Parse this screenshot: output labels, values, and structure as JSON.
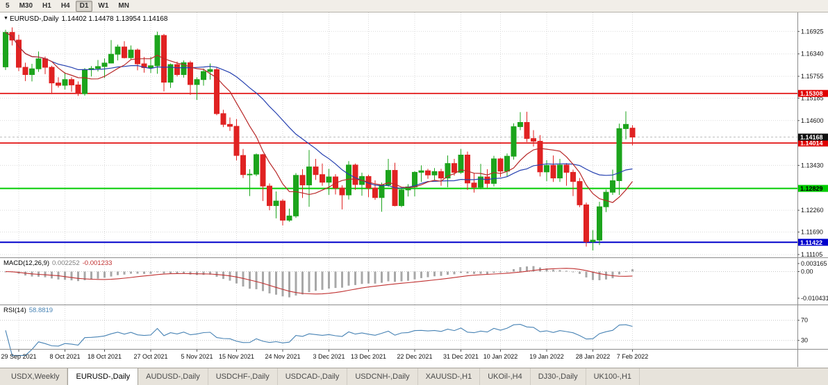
{
  "toolbar": {
    "timeframes": [
      {
        "label": "5",
        "active": false
      },
      {
        "label": "M30",
        "active": false
      },
      {
        "label": "H1",
        "active": false
      },
      {
        "label": "H4",
        "active": false
      },
      {
        "label": "D1",
        "active": true
      },
      {
        "label": "W1",
        "active": false
      },
      {
        "label": "MN",
        "active": false
      }
    ]
  },
  "chart": {
    "symbol_title": "EURUSD-,Daily",
    "ohlc_text": "1.14402 1.14478 1.13954 1.14168"
  },
  "indicators": {
    "macd": {
      "name": "MACD(12,26,9)",
      "value_main": "0.002252",
      "value_signal": "-0.001233"
    },
    "rsi": {
      "name": "RSI(14)",
      "value": "58.8819"
    }
  },
  "tabs": {
    "items": [
      "USDX,Weekly",
      "EURUSD-,Daily",
      "AUDUSD-,Daily",
      "USDCHF-,Daily",
      "USDCAD-,Daily",
      "USDCNH-,Daily",
      "XAUUSD-,H1",
      "UKOil-,H4",
      "DJ30-,Daily",
      "UK100-,H1"
    ],
    "active": "EURUSD-,Daily"
  },
  "chart_data": {
    "type": "candlestick",
    "symbol": "EURUSD-",
    "timeframe": "Daily",
    "title": "EURUSD-,Daily 1.14402 1.14478 1.13954 1.14168",
    "last_candle": {
      "open": 1.14402,
      "high": 1.14478,
      "low": 1.13954,
      "close": 1.14168
    },
    "price_range": [
      1.1103,
      1.1742
    ],
    "price_axis_ticks": [
      1.16925,
      1.1634,
      1.15755,
      1.15185,
      1.146,
      1.1343,
      1.1226,
      1.1169,
      1.11105
    ],
    "current_price": {
      "value": 1.14168,
      "label": "1.14168",
      "color": "#111111"
    },
    "hlines": [
      {
        "name": "resistance-line-upper",
        "price": 1.15308,
        "label": "1.15308",
        "color": "#e00000",
        "text_color": "#ffffff",
        "width": 1.6
      },
      {
        "name": "resistance-line-lower",
        "price": 1.14014,
        "label": "1.14014",
        "color": "#e00000",
        "text_color": "#ffffff",
        "width": 1.6
      },
      {
        "name": "support-line-green",
        "price": 1.12829,
        "label": "1.12829",
        "color": "#00cc00",
        "text_color": "#000000",
        "width": 2
      },
      {
        "name": "support-line-blue",
        "price": 1.11422,
        "label": "1.11422",
        "color": "#0000cc",
        "text_color": "#ffffff",
        "width": 2
      }
    ],
    "moving_averages": [
      {
        "period": 21,
        "color": "#2540b0"
      },
      {
        "period": 8,
        "color": "#b82828"
      }
    ],
    "macd": {
      "params": [
        12,
        26,
        9
      ],
      "ylim": [
        -0.0129,
        0.0053
      ],
      "axis_labels": [
        "0.003165",
        "0.00",
        "-0.010431"
      ]
    },
    "rsi": {
      "period": 14,
      "ylim": [
        13,
        100
      ],
      "levels": [
        70,
        30
      ],
      "last_value": 58.8819
    },
    "date_ticks": [
      [
        2,
        "29 Sep 2021"
      ],
      [
        9,
        "8 Oct 2021"
      ],
      [
        15,
        "18 Oct 2021"
      ],
      [
        22,
        "27 Oct 2021"
      ],
      [
        29,
        "5 Nov 2021"
      ],
      [
        35,
        "15 Nov 2021"
      ],
      [
        42,
        "24 Nov 2021"
      ],
      [
        49,
        "3 Dec 2021"
      ],
      [
        55,
        "13 Dec 2021"
      ],
      [
        62,
        "22 Dec 2021"
      ],
      [
        69,
        "31 Dec 2021"
      ],
      [
        75,
        "10 Jan 2022"
      ],
      [
        82,
        "19 Jan 2022"
      ],
      [
        89,
        "28 Jan 2022"
      ],
      [
        95,
        "7 Feb 2022"
      ]
    ],
    "colors": {
      "bull_candle": "#1ca41c",
      "bear_candle": "#e02222",
      "grid": "#d9d9d9",
      "panel_border": "#8c8c8c",
      "macd_histogram": "#a8a8a8",
      "macd_signal": "#c03030",
      "rsi_line": "#4682b4"
    },
    "candles": [
      [
        "27 Sep 2021",
        1.16,
        1.1697,
        1.1592,
        1.169
      ],
      [
        "28 Sep 2021",
        1.169,
        1.1703,
        1.1656,
        1.167
      ],
      [
        "29 Sep 2021",
        1.167,
        1.1684,
        1.1589,
        1.1599
      ],
      [
        "30 Sep 2021",
        1.1599,
        1.1611,
        1.1563,
        1.158
      ],
      [
        "1 Oct 2021",
        1.158,
        1.1608,
        1.1562,
        1.1595
      ],
      [
        "4 Oct 2021",
        1.1595,
        1.164,
        1.1587,
        1.1621
      ],
      [
        "5 Oct 2021",
        1.1621,
        1.1627,
        1.1581,
        1.1599
      ],
      [
        "6 Oct 2021",
        1.1599,
        1.1603,
        1.1529,
        1.1558
      ],
      [
        "7 Oct 2021",
        1.1558,
        1.1573,
        1.1546,
        1.1552
      ],
      [
        "8 Oct 2021",
        1.1552,
        1.1586,
        1.1541,
        1.1567
      ],
      [
        "11 Oct 2021",
        1.1567,
        1.1573,
        1.1535,
        1.1553
      ],
      [
        "12 Oct 2021",
        1.1553,
        1.1562,
        1.1524,
        1.153
      ],
      [
        "13 Oct 2021",
        1.153,
        1.1597,
        1.1525,
        1.1593
      ],
      [
        "14 Oct 2021",
        1.1593,
        1.1602,
        1.1575,
        1.1596
      ],
      [
        "15 Oct 2021",
        1.1596,
        1.1618,
        1.1588,
        1.1601
      ],
      [
        "18 Oct 2021",
        1.1601,
        1.1622,
        1.1571,
        1.161
      ],
      [
        "19 Oct 2021",
        1.161,
        1.167,
        1.1609,
        1.1633
      ],
      [
        "20 Oct 2021",
        1.1633,
        1.1658,
        1.1617,
        1.1652
      ],
      [
        "21 Oct 2021",
        1.1652,
        1.1667,
        1.1622,
        1.1624
      ],
      [
        "22 Oct 2021",
        1.1624,
        1.1656,
        1.162,
        1.1644
      ],
      [
        "25 Oct 2021",
        1.1644,
        1.1648,
        1.1591,
        1.1608
      ],
      [
        "26 Oct 2021",
        1.1608,
        1.1626,
        1.1585,
        1.1598
      ],
      [
        "27 Oct 2021",
        1.1598,
        1.1626,
        1.1584,
        1.1603
      ],
      [
        "28 Oct 2021",
        1.1603,
        1.1692,
        1.1582,
        1.1682
      ],
      [
        "29 Oct 2021",
        1.1682,
        1.1686,
        1.1536,
        1.156
      ],
      [
        "1 Nov 2021",
        1.156,
        1.1609,
        1.1545,
        1.1606
      ],
      [
        "2 Nov 2021",
        1.1606,
        1.1614,
        1.1575,
        1.158
      ],
      [
        "3 Nov 2021",
        1.158,
        1.1617,
        1.1572,
        1.1611
      ],
      [
        "4 Nov 2021",
        1.1611,
        1.1616,
        1.1527,
        1.1554
      ],
      [
        "5 Nov 2021",
        1.1554,
        1.1573,
        1.1514,
        1.1567
      ],
      [
        "8 Nov 2021",
        1.1567,
        1.1596,
        1.1551,
        1.1588
      ],
      [
        "9 Nov 2021",
        1.1588,
        1.1609,
        1.1567,
        1.1593
      ],
      [
        "10 Nov 2021",
        1.1593,
        1.1599,
        1.1474,
        1.1478
      ],
      [
        "11 Nov 2021",
        1.1478,
        1.1488,
        1.1443,
        1.145
      ],
      [
        "12 Nov 2021",
        1.145,
        1.1468,
        1.1433,
        1.1445
      ],
      [
        "15 Nov 2021",
        1.1445,
        1.1464,
        1.1356,
        1.1369
      ],
      [
        "16 Nov 2021",
        1.1369,
        1.1386,
        1.131,
        1.1319
      ],
      [
        "17 Nov 2021",
        1.1319,
        1.1333,
        1.1263,
        1.132
      ],
      [
        "18 Nov 2021",
        1.132,
        1.1374,
        1.1315,
        1.1371
      ],
      [
        "19 Nov 2021",
        1.1371,
        1.1373,
        1.125,
        1.1289
      ],
      [
        "22 Nov 2021",
        1.1289,
        1.1296,
        1.1226,
        1.1238
      ],
      [
        "23 Nov 2021",
        1.1238,
        1.1275,
        1.1205,
        1.125
      ],
      [
        "24 Nov 2021",
        1.125,
        1.1255,
        1.1186,
        1.12
      ],
      [
        "25 Nov 2021",
        1.12,
        1.123,
        1.1196,
        1.1211
      ],
      [
        "26 Nov 2021",
        1.1211,
        1.1323,
        1.1206,
        1.1317
      ],
      [
        "29 Nov 2021",
        1.1317,
        1.1333,
        1.1258,
        1.1292
      ],
      [
        "30 Nov 2021",
        1.1292,
        1.1383,
        1.1235,
        1.1339
      ],
      [
        "1 Dec 2021",
        1.1339,
        1.136,
        1.1305,
        1.1319
      ],
      [
        "2 Dec 2021",
        1.1319,
        1.1348,
        1.129,
        1.1299
      ],
      [
        "3 Dec 2021",
        1.1299,
        1.1334,
        1.1266,
        1.1313
      ],
      [
        "6 Dec 2021",
        1.1313,
        1.132,
        1.1267,
        1.1284
      ],
      [
        "7 Dec 2021",
        1.1284,
        1.1291,
        1.1228,
        1.1266
      ],
      [
        "8 Dec 2021",
        1.1266,
        1.1354,
        1.1254,
        1.1344
      ],
      [
        "9 Dec 2021",
        1.1344,
        1.1348,
        1.1279,
        1.1293
      ],
      [
        "10 Dec 2021",
        1.1293,
        1.1324,
        1.1264,
        1.1314
      ],
      [
        "13 Dec 2021",
        1.1314,
        1.1319,
        1.126,
        1.1284
      ],
      [
        "14 Dec 2021",
        1.1284,
        1.1304,
        1.1253,
        1.1259
      ],
      [
        "15 Dec 2021",
        1.1259,
        1.1298,
        1.1222,
        1.1292
      ],
      [
        "16 Dec 2021",
        1.1292,
        1.136,
        1.1287,
        1.133
      ],
      [
        "17 Dec 2021",
        1.133,
        1.135,
        1.1236,
        1.1238
      ],
      [
        "20 Dec 2021",
        1.1238,
        1.1283,
        1.1234,
        1.1279
      ],
      [
        "21 Dec 2021",
        1.1279,
        1.1294,
        1.1262,
        1.1287
      ],
      [
        "22 Dec 2021",
        1.1287,
        1.1328,
        1.1262,
        1.1325
      ],
      [
        "23 Dec 2021",
        1.1325,
        1.1343,
        1.13,
        1.1329
      ],
      [
        "24 Dec 2021",
        1.1329,
        1.1334,
        1.1308,
        1.1318
      ],
      [
        "27 Dec 2021",
        1.1318,
        1.1336,
        1.1304,
        1.1327
      ],
      [
        "28 Dec 2021",
        1.1327,
        1.1334,
        1.129,
        1.131
      ],
      [
        "29 Dec 2021",
        1.131,
        1.1369,
        1.1286,
        1.1348
      ],
      [
        "30 Dec 2021",
        1.1348,
        1.136,
        1.1316,
        1.1325
      ],
      [
        "31 Dec 2021",
        1.1325,
        1.1386,
        1.1321,
        1.137
      ],
      [
        "3 Jan 2022",
        1.137,
        1.1379,
        1.1279,
        1.1297
      ],
      [
        "4 Jan 2022",
        1.1297,
        1.1323,
        1.1272,
        1.1286
      ],
      [
        "5 Jan 2022",
        1.1286,
        1.1347,
        1.1281,
        1.1313
      ],
      [
        "6 Jan 2022",
        1.1313,
        1.1333,
        1.1285,
        1.1296
      ],
      [
        "7 Jan 2022",
        1.1296,
        1.1368,
        1.1288,
        1.136
      ],
      [
        "10 Jan 2022",
        1.136,
        1.1363,
        1.1313,
        1.1328
      ],
      [
        "11 Jan 2022",
        1.1328,
        1.1374,
        1.1314,
        1.1367
      ],
      [
        "12 Jan 2022",
        1.1367,
        1.1453,
        1.1358,
        1.1444
      ],
      [
        "13 Jan 2022",
        1.1444,
        1.1482,
        1.1435,
        1.1455
      ],
      [
        "14 Jan 2022",
        1.1455,
        1.1483,
        1.1404,
        1.1413
      ],
      [
        "17 Jan 2022",
        1.1413,
        1.1435,
        1.1392,
        1.1406
      ],
      [
        "18 Jan 2022",
        1.1406,
        1.1422,
        1.1314,
        1.1326
      ],
      [
        "19 Jan 2022",
        1.1326,
        1.1357,
        1.1302,
        1.1343
      ],
      [
        "20 Jan 2022",
        1.1343,
        1.1369,
        1.13,
        1.131
      ],
      [
        "21 Jan 2022",
        1.131,
        1.136,
        1.13,
        1.1344
      ],
      [
        "24 Jan 2022",
        1.1344,
        1.1349,
        1.129,
        1.1325
      ],
      [
        "25 Jan 2022",
        1.1325,
        1.1332,
        1.1263,
        1.1301
      ],
      [
        "26 Jan 2022",
        1.1301,
        1.131,
        1.1234,
        1.124
      ],
      [
        "27 Jan 2022",
        1.124,
        1.1246,
        1.1131,
        1.1144
      ],
      [
        "28 Jan 2022",
        1.1144,
        1.1174,
        1.1121,
        1.1148
      ],
      [
        "31 Jan 2022",
        1.1148,
        1.1248,
        1.1135,
        1.1235
      ],
      [
        "1 Feb 2022",
        1.1235,
        1.128,
        1.1221,
        1.1273
      ],
      [
        "2 Feb 2022",
        1.1273,
        1.1332,
        1.1266,
        1.1303
      ],
      [
        "3 Feb 2022",
        1.1303,
        1.1452,
        1.1266,
        1.1439
      ],
      [
        "4 Feb 2022",
        1.1439,
        1.1484,
        1.1411,
        1.145
      ],
      [
        "7 Feb 2022",
        1.14402,
        1.14478,
        1.13954,
        1.14168
      ]
    ]
  }
}
